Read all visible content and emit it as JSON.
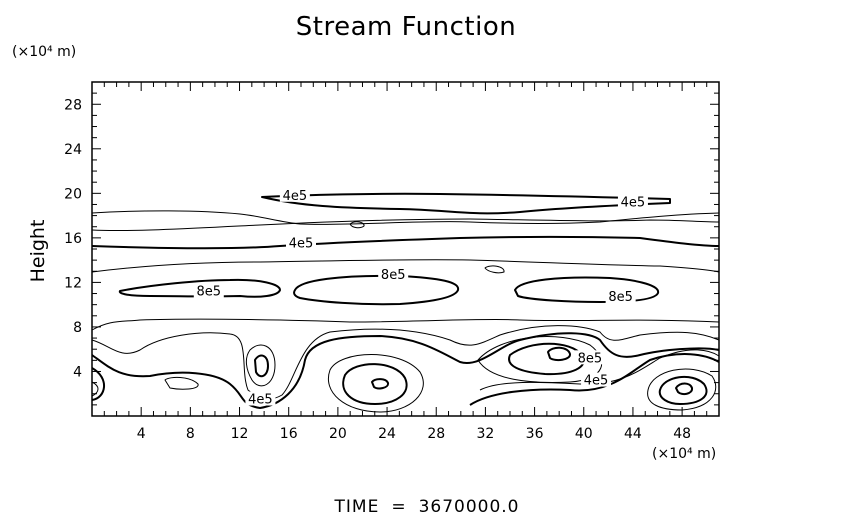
{
  "chart_data": {
    "type": "contour",
    "title": "Stream Function",
    "ylabel": "Height",
    "x_unit": "(×10⁴ m)",
    "y_unit": "(×10⁴ m)",
    "xlim": [
      0,
      51
    ],
    "ylim": [
      0,
      30
    ],
    "x_ticks": [
      4,
      8,
      12,
      16,
      20,
      24,
      28,
      32,
      36,
      40,
      44,
      48
    ],
    "y_ticks": [
      4,
      8,
      12,
      16,
      20,
      24,
      28
    ],
    "x_tick_labels": [
      "4",
      "8",
      "12",
      "16",
      "20",
      "24",
      "28",
      "32",
      "36",
      "40",
      "44",
      "48"
    ],
    "y_tick_labels": [
      "4",
      "8",
      "12",
      "16",
      "20",
      "24",
      "28"
    ],
    "contour_labels": [
      {
        "text": "4e5",
        "x": 16.5,
        "y": 19.6
      },
      {
        "text": "4e5",
        "x": 44.0,
        "y": 19.0
      },
      {
        "text": "4e5",
        "x": 17.0,
        "y": 15.3
      },
      {
        "text": "8e5",
        "x": 24.5,
        "y": 12.5
      },
      {
        "text": "8e5",
        "x": 9.5,
        "y": 11.0
      },
      {
        "text": "8e5",
        "x": 43.0,
        "y": 10.5
      },
      {
        "text": "4e5",
        "x": 13.7,
        "y": 1.3
      },
      {
        "text": "8e5",
        "x": 40.5,
        "y": 5.0
      },
      {
        "text": "4e5",
        "x": 41.0,
        "y": 3.0
      }
    ],
    "grid": false,
    "legend": "none"
  },
  "footer": {
    "label": "TIME",
    "equals": "=",
    "value": "3670000.0"
  },
  "colors": {
    "line": "#000000",
    "background": "#ffffff"
  }
}
